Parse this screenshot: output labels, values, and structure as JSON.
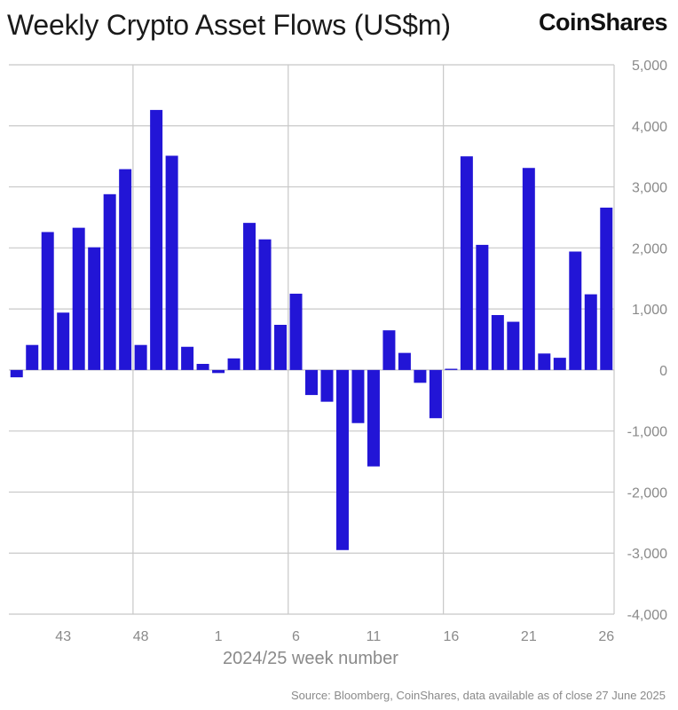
{
  "header": {
    "title": "Weekly Crypto Asset Flows (US$m)",
    "brand": "CoinShares"
  },
  "footer": {
    "source": "Source: Bloomberg, CoinShares, data available as of close 27 June 2025"
  },
  "colors": {
    "bar": "#2215d6",
    "grid": "#c8c8c8",
    "axis_text": "#8a8a8a"
  },
  "chart_data": {
    "type": "bar",
    "xlabel": "2024/25 week number",
    "ylabel": "",
    "ylim": [
      -4000,
      5000
    ],
    "y_ticks": [
      5000,
      4000,
      3000,
      2000,
      1000,
      0,
      -1000,
      -2000,
      -3000,
      -4000
    ],
    "y_tick_labels": [
      "5,000",
      "4,000",
      "3,000",
      "2,000",
      "1,000",
      "0",
      "-1,000",
      "-2,000",
      "-3,000",
      "-4,000"
    ],
    "x_tick_labels": [
      {
        "week": 43,
        "label": "43"
      },
      {
        "week": 48,
        "label": "48"
      },
      {
        "week": 1,
        "label": "1"
      },
      {
        "week": 6,
        "label": "6"
      },
      {
        "week": 11,
        "label": "11"
      },
      {
        "week": 16,
        "label": "16"
      },
      {
        "week": 21,
        "label": "21"
      },
      {
        "week": 26,
        "label": "26"
      }
    ],
    "categories": [
      "40",
      "41",
      "42",
      "43",
      "44",
      "45",
      "46",
      "47",
      "48",
      "49",
      "50",
      "51",
      "52",
      "1",
      "2",
      "3",
      "4",
      "5",
      "6",
      "7",
      "8",
      "9",
      "10",
      "11",
      "12",
      "13",
      "14",
      "15",
      "16",
      "17",
      "18",
      "19",
      "20",
      "21",
      "22",
      "23",
      "24",
      "25",
      "26"
    ],
    "values": [
      -120,
      410,
      2260,
      940,
      2330,
      2010,
      2880,
      3290,
      410,
      4260,
      3510,
      380,
      100,
      -50,
      190,
      2410,
      2140,
      740,
      1250,
      -410,
      -520,
      -2950,
      -870,
      -1580,
      650,
      280,
      -210,
      -790,
      20,
      3500,
      2050,
      900,
      790,
      3310,
      270,
      200,
      1940,
      1240,
      2660
    ],
    "grid": true,
    "vertical_gridlines_at": [
      {
        "week": 48
      },
      {
        "week": 6
      },
      {
        "week": 16
      }
    ]
  }
}
